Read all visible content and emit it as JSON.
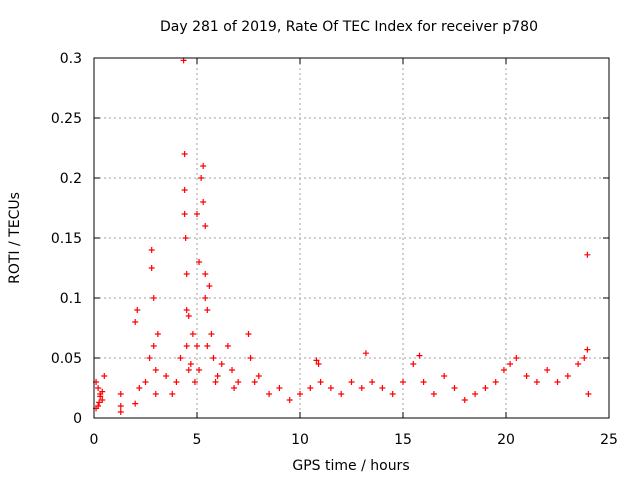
{
  "chart_data": {
    "type": "scatter",
    "title": "Day 281 of 2019, Rate Of TEC Index for receiver p780",
    "xlabel": "GPS time / hours",
    "ylabel": "ROTI / TECUs",
    "xlim": [
      0,
      25
    ],
    "ylim": [
      0,
      0.3
    ],
    "xticks": [
      "0",
      "5",
      "10",
      "15",
      "20",
      "25"
    ],
    "yticks": [
      "0",
      "0.05",
      "0.1",
      "0.15",
      "0.2",
      "0.25",
      "0.3"
    ],
    "grid": true,
    "marker": "+",
    "color": "#ff0000",
    "series": [
      {
        "name": "ROTI",
        "x": [
          0.1,
          0.2,
          0.3,
          0.4,
          0.5,
          0.2,
          0.3,
          0.1,
          0.4,
          0.25,
          1.3,
          1.3,
          1.3,
          2.0,
          2.1,
          2.0,
          2.2,
          2.5,
          2.7,
          2.8,
          2.8,
          2.9,
          2.9,
          3.0,
          3.1,
          3.0,
          3.5,
          3.8,
          4.0,
          4.2,
          4.35,
          4.4,
          4.4,
          4.4,
          4.45,
          4.5,
          4.5,
          4.5,
          4.6,
          4.6,
          4.7,
          4.8,
          4.9,
          5.0,
          5.0,
          5.1,
          5.1,
          5.2,
          5.3,
          5.3,
          5.4,
          5.4,
          5.4,
          5.5,
          5.5,
          5.6,
          5.7,
          5.8,
          5.9,
          6.0,
          6.2,
          6.5,
          6.7,
          6.8,
          7.0,
          7.5,
          7.6,
          7.8,
          8.0,
          8.5,
          9.0,
          9.5,
          10.0,
          10.5,
          10.8,
          10.9,
          11.0,
          11.5,
          12.0,
          12.5,
          13.0,
          13.2,
          13.5,
          14.0,
          14.5,
          15.0,
          15.5,
          15.8,
          16.0,
          16.5,
          17.0,
          17.5,
          18.0,
          18.5,
          19.0,
          19.5,
          19.9,
          20.2,
          20.5,
          21.0,
          21.5,
          22.0,
          22.5,
          23.0,
          23.5,
          23.8,
          23.95,
          23.95,
          24.0
        ],
        "y": [
          0.03,
          0.025,
          0.02,
          0.015,
          0.035,
          0.01,
          0.018,
          0.008,
          0.022,
          0.013,
          0.02,
          0.01,
          0.005,
          0.012,
          0.09,
          0.08,
          0.025,
          0.03,
          0.05,
          0.14,
          0.125,
          0.1,
          0.06,
          0.04,
          0.07,
          0.02,
          0.035,
          0.02,
          0.03,
          0.05,
          0.298,
          0.22,
          0.19,
          0.17,
          0.15,
          0.12,
          0.09,
          0.06,
          0.085,
          0.04,
          0.045,
          0.07,
          0.03,
          0.17,
          0.06,
          0.13,
          0.04,
          0.2,
          0.21,
          0.18,
          0.16,
          0.12,
          0.1,
          0.09,
          0.06,
          0.11,
          0.07,
          0.05,
          0.03,
          0.035,
          0.045,
          0.06,
          0.04,
          0.025,
          0.03,
          0.07,
          0.05,
          0.03,
          0.035,
          0.02,
          0.025,
          0.015,
          0.02,
          0.025,
          0.048,
          0.045,
          0.03,
          0.025,
          0.02,
          0.03,
          0.025,
          0.054,
          0.03,
          0.025,
          0.02,
          0.03,
          0.045,
          0.052,
          0.03,
          0.02,
          0.035,
          0.025,
          0.015,
          0.02,
          0.025,
          0.03,
          0.04,
          0.045,
          0.05,
          0.035,
          0.03,
          0.04,
          0.03,
          0.035,
          0.045,
          0.05,
          0.136,
          0.057,
          0.02
        ]
      }
    ]
  }
}
